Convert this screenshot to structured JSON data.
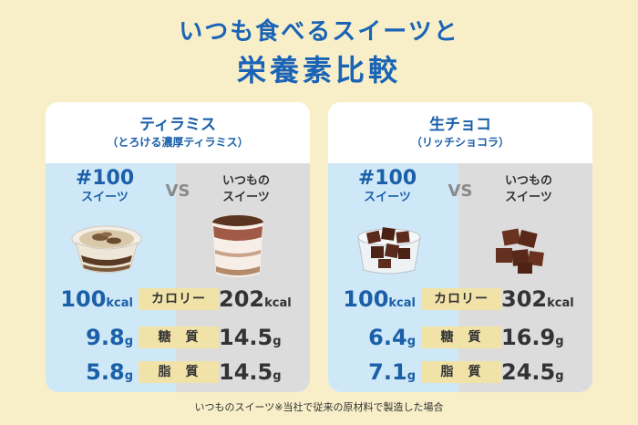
{
  "header": {
    "line1": "いつも食べるスイーツと",
    "line2": "栄養素比較"
  },
  "panels": [
    {
      "title": "ティラミス",
      "subtitle": "（とろける濃厚ティラミス）",
      "ours_label_big": "#100",
      "ours_label_small": "スイーツ",
      "vs": "VS",
      "theirs_label_1": "いつもの",
      "theirs_label_2": "スイーツ",
      "rows": [
        {
          "label": "カロリー",
          "ours": "100",
          "ours_unit": "kcal",
          "theirs": "202",
          "theirs_unit": "kcal"
        },
        {
          "label": "糖　質",
          "ours": "9.8",
          "ours_unit": "g",
          "theirs": "14.5",
          "theirs_unit": "g"
        },
        {
          "label": "脂　質",
          "ours": "5.8",
          "ours_unit": "g",
          "theirs": "14.5",
          "theirs_unit": "g"
        }
      ]
    },
    {
      "title": "生チョコ",
      "subtitle": "（リッチショコラ）",
      "ours_label_big": "#100",
      "ours_label_small": "スイーツ",
      "vs": "VS",
      "theirs_label_1": "いつもの",
      "theirs_label_2": "スイーツ",
      "rows": [
        {
          "label": "カロリー",
          "ours": "100",
          "ours_unit": "kcal",
          "theirs": "302",
          "theirs_unit": "kcal"
        },
        {
          "label": "糖　質",
          "ours": "6.4",
          "ours_unit": "g",
          "theirs": "16.9",
          "theirs_unit": "g"
        },
        {
          "label": "脂　質",
          "ours": "7.1",
          "ours_unit": "g",
          "theirs": "24.5",
          "theirs_unit": "g"
        }
      ]
    }
  ],
  "footnote": "いつものスイーツ※当社で従来の原材料で製造した場合",
  "colors": {
    "background": "#f8efc9",
    "accent_blue": "#1a63b5",
    "ours_column": "#cfe8f7",
    "theirs_column": "#dcdcdc",
    "label_bg": "#f1e3a8"
  }
}
